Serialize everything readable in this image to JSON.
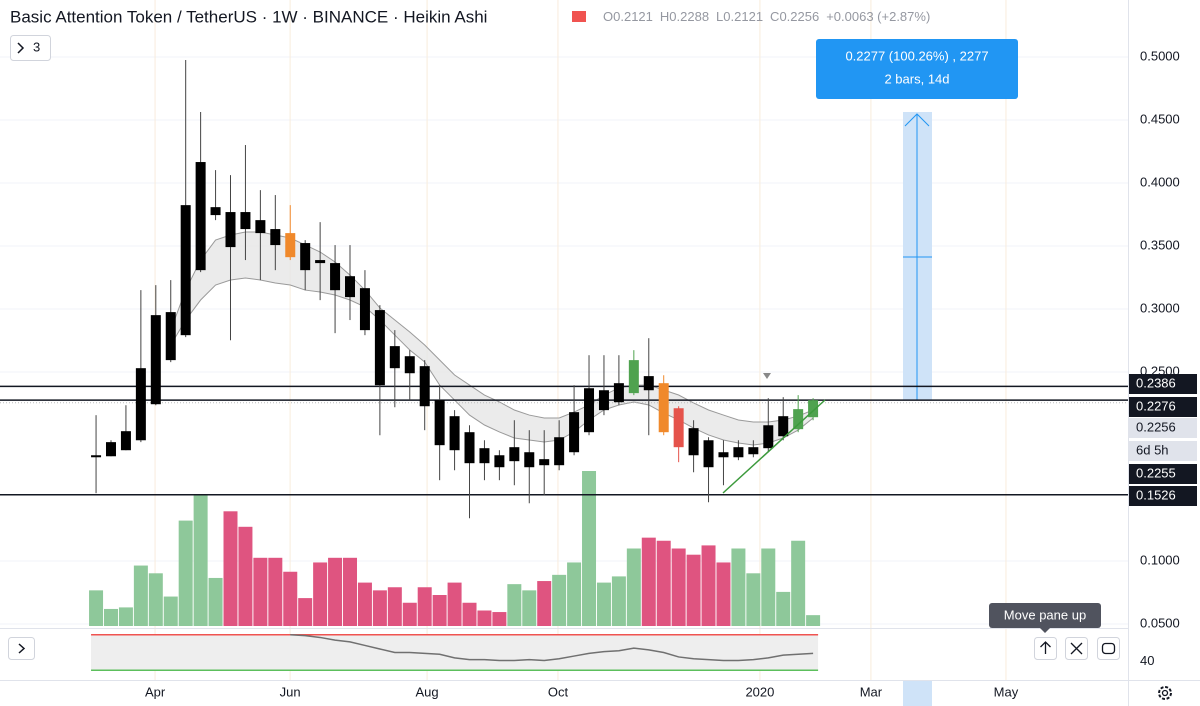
{
  "header": {
    "title": "Basic Attention Token / TetherUS · 1W · BINANCE · Heikin Ashi",
    "ohlc": [
      {
        "label": "O",
        "value": "0.2121"
      },
      {
        "label": "H",
        "value": "0.2288"
      },
      {
        "label": "L",
        "value": "0.2121"
      },
      {
        "label": "C",
        "value": "0.2256"
      }
    ],
    "change": "+0.0063 (+2.87%)"
  },
  "indicators_button": "3",
  "tooltip": "Move pane up",
  "chart_data": {
    "type": "candlestick",
    "categories": [
      null,
      null,
      null,
      null,
      null,
      null,
      null,
      null,
      null,
      null,
      null,
      null,
      null,
      null,
      null,
      null,
      null,
      null,
      null,
      null,
      null,
      null,
      null,
      null,
      null,
      null,
      null,
      null,
      null,
      null,
      null,
      null,
      null,
      null,
      null,
      null,
      null,
      null,
      null,
      null,
      null,
      null,
      null,
      null,
      null,
      null,
      null,
      null,
      null
    ],
    "open": [
      0.1823,
      0.1831,
      0.1879,
      0.1958,
      0.2244,
      0.2594,
      0.2792,
      0.3308,
      0.3808,
      0.3769,
      0.3769,
      0.3705,
      0.3634,
      0.3602,
      0.3523,
      0.3388,
      0.3364,
      0.326,
      0.3165,
      0.2991,
      0.2705,
      0.2625,
      0.2546,
      0.2276,
      0.2149,
      0.2022,
      0.1895,
      0.1839,
      0.1792,
      0.1863,
      0.1808,
      0.176,
      0.1863,
      0.2022,
      0.2197,
      0.226,
      0.2332,
      0.2467,
      0.2411,
      0.2212,
      0.2054,
      0.1958,
      0.1823,
      0.1823,
      0.1847,
      0.1895,
      0.199,
      0.2046,
      0.2141
    ],
    "high": [
      0.2157,
      0.1958,
      0.2236,
      0.3149,
      0.3189,
      0.3229,
      0.4976,
      0.4563,
      0.4102,
      0.4062,
      0.4301,
      0.3943,
      0.3904,
      0.3824,
      0.3546,
      0.3689,
      0.3507,
      0.3507,
      0.3308,
      0.303,
      0.2832,
      0.2673,
      0.2594,
      0.2395,
      0.2197,
      0.2077,
      0.1958,
      0.1879,
      0.2117,
      0.2038,
      0.2038,
      0.2117,
      0.2395,
      0.2633,
      0.2633,
      0.2633,
      0.2673,
      0.2768,
      0.2474,
      0.2228,
      0.2117,
      0.1982,
      0.1958,
      0.1958,
      0.1958,
      0.2292,
      0.23,
      0.2316,
      0.2292
    ],
    "low": [
      0.1538,
      0.1831,
      0.1879,
      0.1943,
      0.2236,
      0.2578,
      0.2776,
      0.3292,
      0.3705,
      0.2752,
      0.3388,
      0.3229,
      0.3308,
      0.3388,
      0.3149,
      0.307,
      0.2808,
      0.2912,
      0.2792,
      0.1998,
      0.222,
      0.2276,
      0.2038,
      0.1641,
      0.172,
      0.1339,
      0.1641,
      0.1641,
      0.1601,
      0.1458,
      0.1522,
      0.172,
      0.1839,
      0.1998,
      0.2157,
      0.2236,
      0.2316,
      0.1998,
      0.1998,
      0.1784,
      0.1704,
      0.1466,
      0.1601,
      0.18,
      0.1823,
      0.1863,
      0.1958,
      0.2022,
      0.2117
    ],
    "close": [
      0.1839,
      0.1943,
      0.203,
      0.253,
      0.2951,
      0.2975,
      0.3824,
      0.4166,
      0.3745,
      0.3491,
      0.3634,
      0.3602,
      0.3507,
      0.3411,
      0.3308,
      0.3364,
      0.3149,
      0.3094,
      0.2832,
      0.2395,
      0.253,
      0.249,
      0.2228,
      0.1919,
      0.1879,
      0.1776,
      0.1776,
      0.1744,
      0.1903,
      0.1744,
      0.176,
      0.1982,
      0.2181,
      0.2371,
      0.2355,
      0.2411,
      0.2594,
      0.2355,
      0.2022,
      0.1903,
      0.1839,
      0.1744,
      0.1863,
      0.1903,
      0.1903,
      0.2077,
      0.2149,
      0.2205,
      0.2276
    ],
    "colors": [
      "#000000",
      "#000000",
      "#000000",
      "#000000",
      "#000000",
      "#000000",
      "#000000",
      "#000000",
      "#000000",
      "#000000",
      "#000000",
      "#000000",
      "#000000",
      "#f0892b",
      "#000000",
      "#000000",
      "#000000",
      "#000000",
      "#000000",
      "#000000",
      "#000000",
      "#000000",
      "#000000",
      "#000000",
      "#000000",
      "#000000",
      "#000000",
      "#000000",
      "#000000",
      "#000000",
      "#000000",
      "#000000",
      "#000000",
      "#000000",
      "#000000",
      "#000000",
      "#4fa24f",
      "#000000",
      "#f0892b",
      "#e5534b",
      "#000000",
      "#000000",
      "#000000",
      "#000000",
      "#000000",
      "#000000",
      "#000000",
      "#4fa24f",
      "#4fa24f"
    ],
    "volume": [
      23,
      11,
      12,
      39,
      34,
      19,
      68,
      85,
      31,
      74,
      64,
      44,
      44,
      35,
      18,
      41,
      44,
      44,
      28,
      23,
      25,
      15,
      25,
      20,
      28,
      15,
      10,
      9,
      27,
      23,
      29,
      33,
      41,
      100,
      28,
      32,
      50,
      57,
      55,
      50,
      46,
      52,
      41,
      50,
      34,
      50,
      22,
      55,
      7
    ],
    "volume_colors": [
      "#8ec89a",
      "#8ec89a",
      "#8ec89a",
      "#8ec89a",
      "#8ec89a",
      "#8ec89a",
      "#8ec89a",
      "#8ec89a",
      "#8ec89a",
      "#df5480",
      "#df5480",
      "#df5480",
      "#df5480",
      "#df5480",
      "#df5480",
      "#df5480",
      "#df5480",
      "#df5480",
      "#df5480",
      "#df5480",
      "#df5480",
      "#df5480",
      "#df5480",
      "#df5480",
      "#df5480",
      "#df5480",
      "#df5480",
      "#df5480",
      "#8ec89a",
      "#8ec89a",
      "#df5480",
      "#8ec89a",
      "#8ec89a",
      "#8ec89a",
      "#8ec89a",
      "#8ec89a",
      "#8ec89a",
      "#df5480",
      "#df5480",
      "#df5480",
      "#df5480",
      "#df5480",
      "#df5480",
      "#8ec89a",
      "#8ec89a",
      "#8ec89a",
      "#8ec89a",
      "#8ec89a",
      "#8ec89a"
    ],
    "volume_ylim": [
      0,
      100
    ],
    "ribbon": {
      "upper": [
        null,
        null,
        null,
        null,
        null,
        0.2833,
        0.315,
        0.3388,
        0.3547,
        0.3587,
        0.3611,
        0.3611,
        0.3587,
        0.3563,
        0.3508,
        0.3452,
        0.3373,
        0.3269,
        0.315,
        0.3008,
        0.2912,
        0.2817,
        0.2714,
        0.2595,
        0.2476,
        0.2396,
        0.2317,
        0.2262,
        0.2198,
        0.2158,
        0.2135,
        0.2135,
        0.2182,
        0.2238,
        0.2317,
        0.2373,
        0.2396,
        0.2396,
        0.2357,
        0.2317,
        0.2254,
        0.2198,
        0.2158,
        0.2119,
        0.2103,
        0.2103,
        0.2119,
        0.215,
        0.2198
      ],
      "lower": [
        null,
        null,
        null,
        null,
        null,
        0.2714,
        0.2912,
        0.3071,
        0.319,
        0.323,
        0.3246,
        0.323,
        0.3206,
        0.319,
        0.315,
        0.3135,
        0.3111,
        0.3071,
        0.3016,
        0.2912,
        0.2793,
        0.2674,
        0.2579,
        0.2396,
        0.2277,
        0.2158,
        0.2079,
        0.2024,
        0.1976,
        0.196,
        0.1944,
        0.196,
        0.2024,
        0.2119,
        0.2198,
        0.2238,
        0.2262,
        0.2238,
        0.2174,
        0.2119,
        0.2055,
        0.2,
        0.196,
        0.1936,
        0.192,
        0.1936,
        0.1976,
        0.2039,
        0.2135
      ]
    },
    "xlim": [
      -6.43,
      69.08
    ],
    "xticks": [
      {
        "value": 3.95,
        "label": "Apr"
      },
      {
        "value": 12.99,
        "label": "Jun"
      },
      {
        "value": 22.16,
        "label": "Aug"
      },
      {
        "value": 30.92,
        "label": "Oct"
      },
      {
        "value": 44.44,
        "label": "2020"
      },
      {
        "value": 51.87,
        "label": "Mar"
      },
      {
        "value": 60.91,
        "label": "May"
      }
    ],
    "ylim": [
      0.0468,
      0.5452
    ],
    "yticks": [
      {
        "value": 0.05,
        "label": "0.0500"
      },
      {
        "value": 0.1,
        "label": "0.1000"
      },
      {
        "value": 0.25,
        "label": "0.2500"
      },
      {
        "value": 0.3,
        "label": "0.3000"
      },
      {
        "value": 0.35,
        "label": "0.3500"
      },
      {
        "value": 0.4,
        "label": "0.4000"
      },
      {
        "value": 0.45,
        "label": "0.4500"
      },
      {
        "value": 0.5,
        "label": "0.5000"
      }
    ],
    "price_lines": [
      {
        "value": 0.2386,
        "label": "0.2386"
      },
      {
        "value": 0.2276,
        "label": "0.2276"
      },
      {
        "value": 0.1526,
        "label": "0.1526"
      }
    ],
    "last_price": {
      "value": 0.2256,
      "label": "0.2256"
    },
    "countdown": "6d 5h",
    "extra_label": {
      "value": 0.2255,
      "label": "0.2255"
    },
    "measure": {
      "text": "0.2277 (100.26%) , 2277",
      "subtext": "2 bars, 14d"
    },
    "rsi": {
      "values": [
        null,
        null,
        null,
        null,
        null,
        null,
        null,
        null,
        null,
        null,
        null,
        null,
        null,
        70,
        69,
        67,
        64,
        62,
        58,
        54,
        50,
        50,
        49,
        48,
        44,
        42,
        42,
        41,
        41,
        42,
        41,
        43,
        46,
        49,
        51,
        52,
        55,
        53,
        50,
        45,
        43,
        42,
        41,
        41,
        42,
        44,
        47,
        48,
        49
      ],
      "ylim": [
        23.5,
        75.4
      ],
      "yticks": [
        40
      ],
      "levels": [
        70,
        30
      ]
    }
  }
}
